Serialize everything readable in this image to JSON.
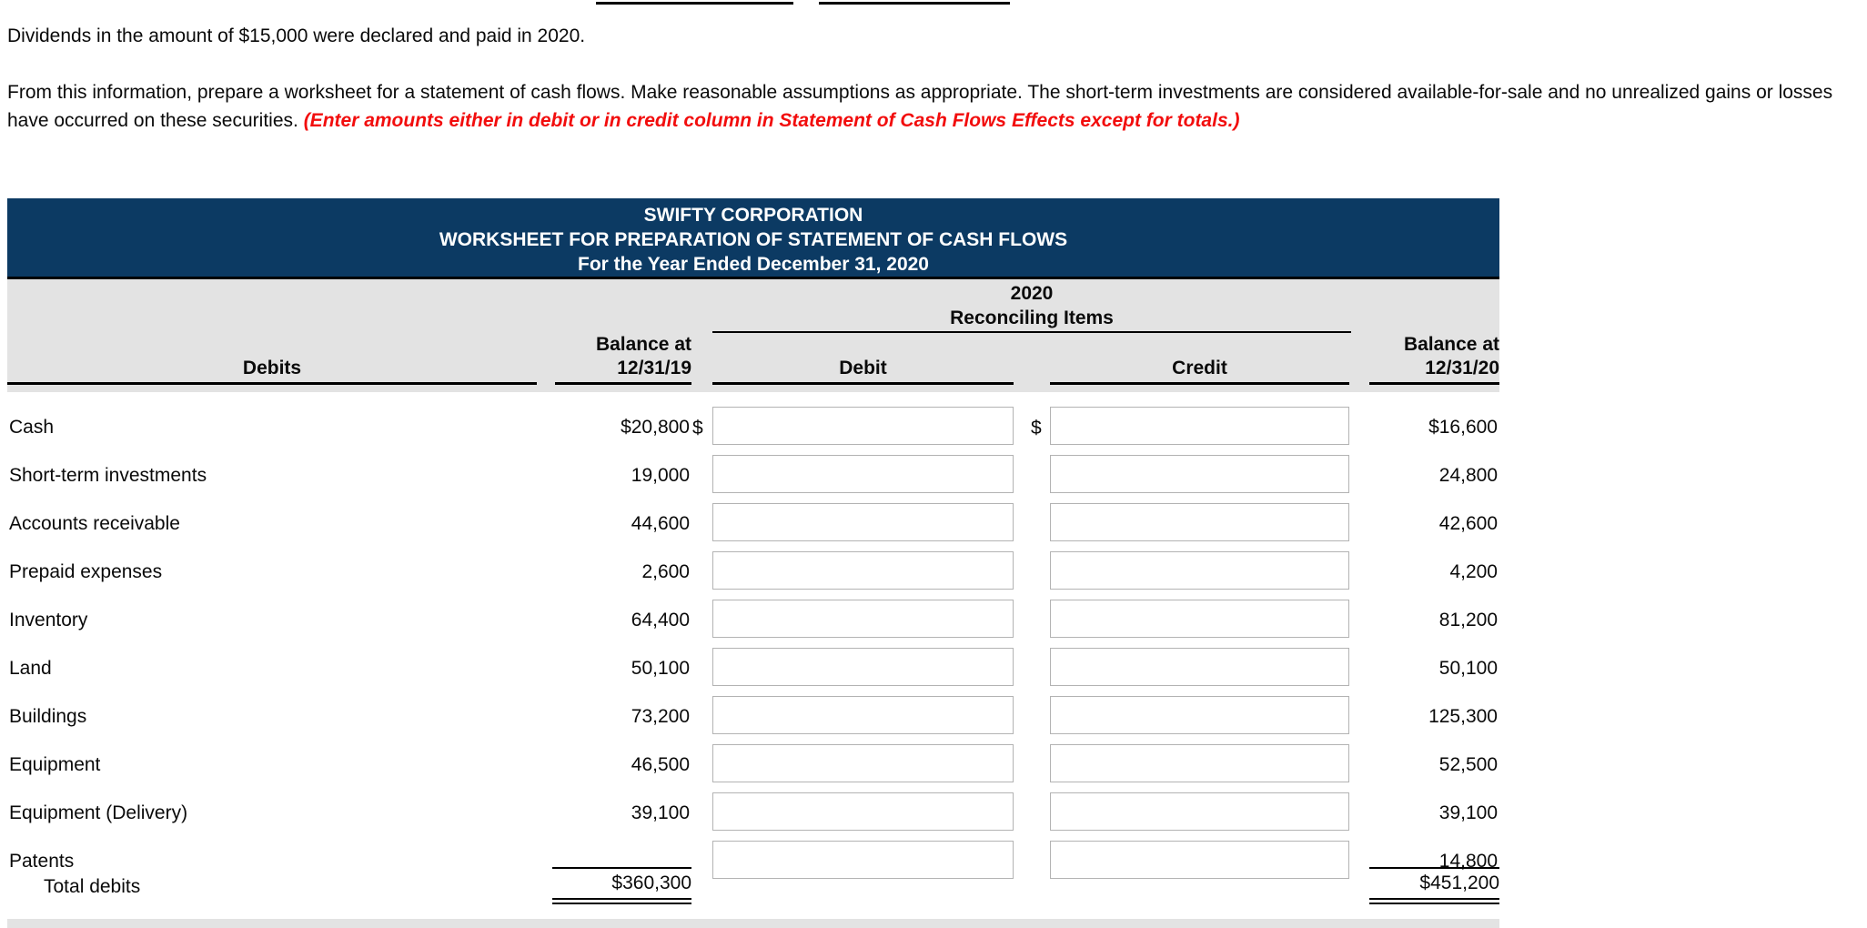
{
  "intro": {
    "line1": "Dividends in the amount of $15,000 were declared and paid in 2020.",
    "para_normal": "From this information, prepare a worksheet for a statement of cash flows. Make reasonable assumptions as appropriate. The short-term investments are considered available-for-sale and no unrealized gains or losses have occurred on these securities. ",
    "para_emphasis": "(Enter amounts either in debit or in credit column in Statement of Cash Flows Effects except for totals.)"
  },
  "worksheet": {
    "title_lines": [
      "SWIFTY CORPORATION",
      "WORKSHEET FOR PREPARATION OF STATEMENT OF CASH FLOWS",
      "For the Year Ended December 31, 2020"
    ],
    "year_label": "2020",
    "reconciling_label": "Reconciling Items",
    "currency_symbol": "$",
    "col_headers": {
      "section": "Debits",
      "balance_start_line1": "Balance at",
      "balance_start_line2": "12/31/19",
      "debit": "Debit",
      "credit": "Credit",
      "balance_end_line1": "Balance at",
      "balance_end_line2": "12/31/20"
    },
    "rows": [
      {
        "label": "Cash",
        "start": "$20,800",
        "end": "$16,600",
        "debit_value": "",
        "credit_value": "",
        "dollar_prefix": true
      },
      {
        "label": "Short-term investments",
        "start": "19,000",
        "end": "24,800",
        "debit_value": "",
        "credit_value": "",
        "dollar_prefix": false
      },
      {
        "label": "Accounts receivable",
        "start": "44,600",
        "end": "42,600",
        "debit_value": "",
        "credit_value": "",
        "dollar_prefix": false
      },
      {
        "label": "Prepaid expenses",
        "start": "2,600",
        "end": "4,200",
        "debit_value": "",
        "credit_value": "",
        "dollar_prefix": false
      },
      {
        "label": "Inventory",
        "start": "64,400",
        "end": "81,200",
        "debit_value": "",
        "credit_value": "",
        "dollar_prefix": false
      },
      {
        "label": "Land",
        "start": "50,100",
        "end": "50,100",
        "debit_value": "",
        "credit_value": "",
        "dollar_prefix": false
      },
      {
        "label": "Buildings",
        "start": "73,200",
        "end": "125,300",
        "debit_value": "",
        "credit_value": "",
        "dollar_prefix": false
      },
      {
        "label": "Equipment",
        "start": "46,500",
        "end": "52,500",
        "debit_value": "",
        "credit_value": "",
        "dollar_prefix": false
      },
      {
        "label": "Equipment (Delivery)",
        "start": "39,100",
        "end": "39,100",
        "debit_value": "",
        "credit_value": "",
        "dollar_prefix": false
      },
      {
        "label": "Patents",
        "start": "",
        "end": "14,800",
        "debit_value": "",
        "credit_value": "",
        "dollar_prefix": false
      }
    ],
    "total_row": {
      "label": "Total debits",
      "start": "$360,300",
      "end": "$451,200"
    }
  },
  "colors": {
    "header_bg": "#0c3a63",
    "subheader_bg": "#e3e3e3",
    "emphasis_red": "#f20d0d",
    "input_border": "#b3b3b3"
  }
}
